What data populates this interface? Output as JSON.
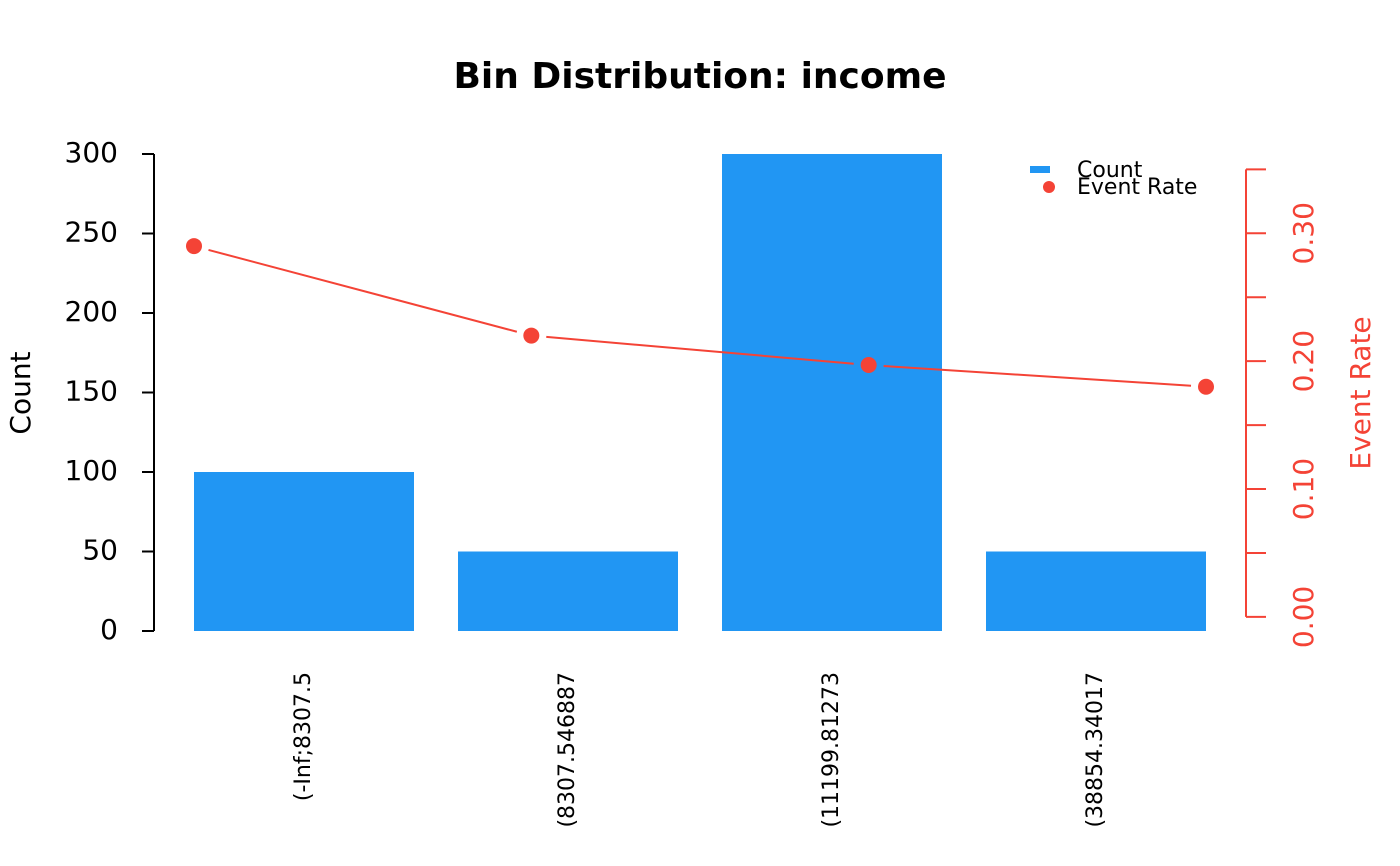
{
  "chart_data": {
    "type": "bar-line",
    "title": "Bin Distribution: income",
    "ylabel": "Count",
    "y2label": "Event Rate",
    "categories": [
      "(-Inf;8307.5",
      "(8307.546887",
      "(11199.81273",
      "(38854.34017"
    ],
    "series": [
      {
        "name": "Count",
        "type": "bar",
        "color": "#2196F3",
        "values": [
          100,
          50,
          300,
          50
        ]
      },
      {
        "name": "Event Rate",
        "type": "line",
        "axis": "y2",
        "color": "#F44336",
        "values": [
          0.29,
          0.22,
          0.197,
          0.18
        ]
      }
    ],
    "ylim": [
      0,
      300
    ],
    "yticks": [
      0,
      50,
      100,
      150,
      200,
      250,
      300
    ],
    "y2lim": [
      -0.011,
      0.362
    ],
    "y2ticks": [
      {
        "value": 0,
        "label": "0.00"
      },
      {
        "value": 0.1,
        "label": "0.10"
      },
      {
        "value": 0.2,
        "label": "0.20"
      },
      {
        "value": 0.3,
        "label": "0.30"
      }
    ],
    "y2minor_ticks": [
      0.05,
      0.15,
      0.25,
      0.35
    ],
    "legend": "top-right"
  }
}
